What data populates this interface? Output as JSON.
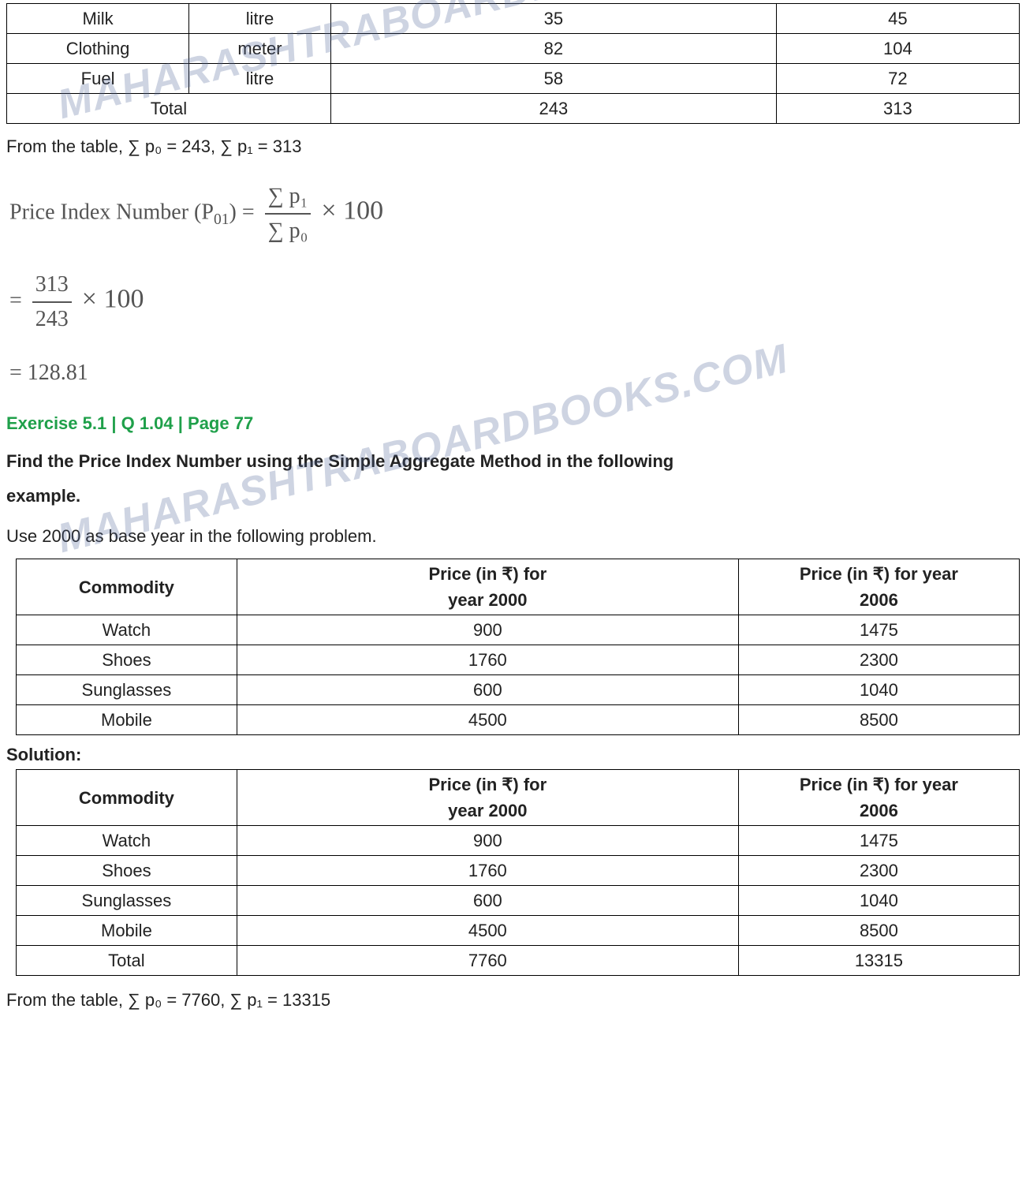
{
  "watermark_text": "MAHARASHTRABOARDBOOKS.COM",
  "table1": {
    "rows": [
      [
        "Milk",
        "litre",
        "35",
        "45"
      ],
      [
        "Clothing",
        "meter",
        "82",
        "104"
      ],
      [
        "Fuel",
        "litre",
        "58",
        "72"
      ]
    ],
    "total_label": "Total",
    "total_v1": "243",
    "total_v2": "313",
    "col_widths_pct": [
      18,
      14,
      44,
      24
    ]
  },
  "from_table_1": "From the table, ∑ p₀ = 243, ∑ p₁ = 313",
  "formula_label": "Price Index Number (P",
  "formula_sub": "01",
  "formula_after_sub": ") =",
  "formula_num": "∑ p₁",
  "formula_den": "∑ p₀",
  "formula_times100": " × 100",
  "calc_num": "313",
  "calc_den": "243",
  "calc_times100": " × 100",
  "calc_eq": "= ",
  "result": "= 128.81",
  "exercise_heading": "Exercise 5.1 | Q 1.04 | Page 77",
  "question_line1": "Find the Price Index Number using the Simple Aggregate Method in the following",
  "question_line2": "example.",
  "instruction": "Use 2000 as base year in the following problem.",
  "table2": {
    "headers": [
      "Commodity",
      "Price (in ₹) for\nyear 2000",
      "Price (in ₹) for year\n2006"
    ],
    "rows": [
      [
        "Watch",
        "900",
        "1475"
      ],
      [
        "Shoes",
        "1760",
        "2300"
      ],
      [
        "Sunglasses",
        "600",
        "1040"
      ],
      [
        "Mobile",
        "4500",
        "8500"
      ]
    ],
    "col_widths_pct": [
      22,
      50,
      28
    ]
  },
  "solution_label": "Solution:",
  "table3": {
    "headers": [
      "Commodity",
      "Price (in ₹) for\nyear 2000",
      "Price (in ₹) for year\n2006"
    ],
    "rows": [
      [
        "Watch",
        "900",
        "1475"
      ],
      [
        "Shoes",
        "1760",
        "2300"
      ],
      [
        "Sunglasses",
        "600",
        "1040"
      ],
      [
        "Mobile",
        "4500",
        "8500"
      ],
      [
        "Total",
        "7760",
        "13315"
      ]
    ],
    "col_widths_pct": [
      22,
      50,
      28
    ]
  },
  "from_table_2": "From the table, ∑ p₀ = 7760, ∑ p₁ = 13315"
}
